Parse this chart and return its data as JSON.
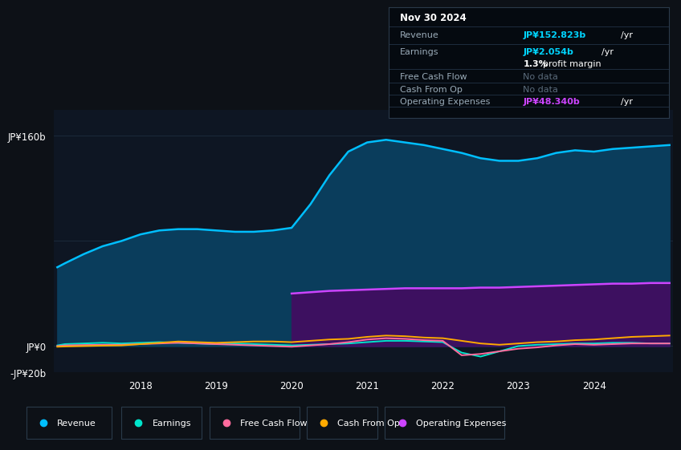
{
  "background_color": "#0d1117",
  "chart_bg": "#0e1623",
  "grid_color": "#1e2d3e",
  "ylim": [
    -20,
    180
  ],
  "yticks": [
    -20,
    0,
    80,
    160
  ],
  "ytick_labels": [
    "-JP¥20b",
    "JP¥0",
    "",
    "JP¥160b"
  ],
  "xticks": [
    2018,
    2019,
    2020,
    2021,
    2022,
    2023,
    2024
  ],
  "years": [
    2016.9,
    2017.0,
    2017.25,
    2017.5,
    2017.75,
    2018.0,
    2018.25,
    2018.5,
    2018.75,
    2019.0,
    2019.25,
    2019.5,
    2019.75,
    2020.0,
    2020.25,
    2020.5,
    2020.75,
    2021.0,
    2021.25,
    2021.5,
    2021.75,
    2022.0,
    2022.25,
    2022.5,
    2022.75,
    2023.0,
    2023.25,
    2023.5,
    2023.75,
    2024.0,
    2024.25,
    2024.5,
    2024.75,
    2025.0
  ],
  "revenue": [
    60,
    63,
    70,
    76,
    80,
    85,
    88,
    89,
    89,
    88,
    87,
    87,
    88,
    90,
    108,
    130,
    148,
    155,
    157,
    155,
    153,
    150,
    147,
    143,
    141,
    141,
    143,
    147,
    149,
    148,
    150,
    151,
    152,
    153
  ],
  "earnings": [
    0.5,
    1.5,
    2,
    2.5,
    2,
    2.5,
    3,
    2.5,
    2,
    1.5,
    2,
    1.5,
    1,
    0.5,
    1,
    1.5,
    2,
    3,
    4,
    4,
    3.5,
    3,
    -5,
    -8,
    -4,
    0,
    1,
    1.5,
    2,
    2,
    2.5,
    2.5,
    2,
    2
  ],
  "free_cash_flow": [
    0,
    0.5,
    0.8,
    1,
    1,
    1.5,
    2,
    2.5,
    2,
    1.5,
    1,
    0.5,
    0,
    -0.5,
    0.5,
    1.5,
    3,
    5,
    6,
    5.5,
    4.5,
    4,
    -7,
    -6,
    -4,
    -2,
    -1,
    0.5,
    1.5,
    1,
    1.5,
    2,
    2,
    2
  ],
  "cash_from_op": [
    -0.5,
    -0.3,
    0,
    0.3,
    0.5,
    1.5,
    2.5,
    3.5,
    3,
    2.5,
    3,
    3.5,
    3.5,
    3,
    4,
    5,
    5.5,
    7,
    8,
    7.5,
    6.5,
    6,
    4,
    2,
    1,
    2,
    3,
    3.5,
    4.5,
    5,
    6,
    7,
    7.5,
    8
  ],
  "op_expenses": [
    0,
    0,
    0,
    0,
    0,
    0,
    0,
    0,
    0,
    0,
    0,
    0,
    0,
    40,
    41,
    42,
    42.5,
    43,
    43.5,
    44,
    44,
    44,
    44,
    44.5,
    44.5,
    45,
    45.5,
    46,
    46.5,
    47,
    47.5,
    47.5,
    48,
    48
  ],
  "revenue_color": "#00bfff",
  "revenue_fill": "#0a3d5c",
  "earnings_color": "#00e5cc",
  "free_cash_flow_color": "#ff6b9d",
  "cash_from_op_color": "#ffaa00",
  "op_expenses_color": "#cc44ff",
  "op_expenses_fill": "#3d1060",
  "tooltip_bg": "#050a10",
  "tooltip_border": "#2a3a4a",
  "tooltip_title": "Nov 30 2024",
  "legend_items": [
    "Revenue",
    "Earnings",
    "Free Cash Flow",
    "Cash From Op",
    "Operating Expenses"
  ],
  "legend_colors": [
    "#00bfff",
    "#00e5cc",
    "#ff6b9d",
    "#ffaa00",
    "#cc44ff"
  ]
}
